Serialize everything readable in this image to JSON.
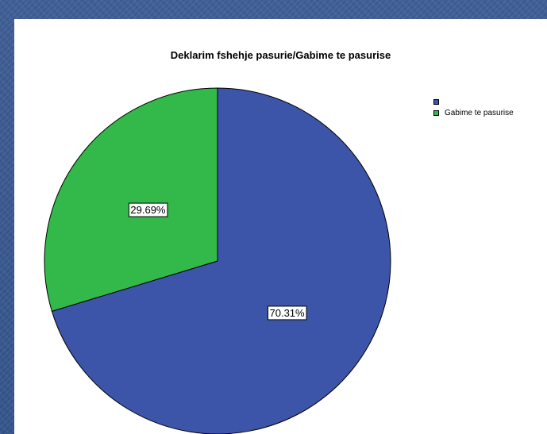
{
  "chart_data": {
    "type": "pie",
    "title": "Deklarim fshehje pasurie/Gabime te pasurise",
    "slices": [
      {
        "label": "",
        "value": 70.31,
        "display": "70.31%",
        "color": "#3d55a8"
      },
      {
        "label": "Gabime te pasurise",
        "value": 29.69,
        "display": "29.69%",
        "color": "#33b84a"
      }
    ],
    "legend_position": "top-right",
    "start_angle": "12 o'clock",
    "direction": "clockwise"
  }
}
